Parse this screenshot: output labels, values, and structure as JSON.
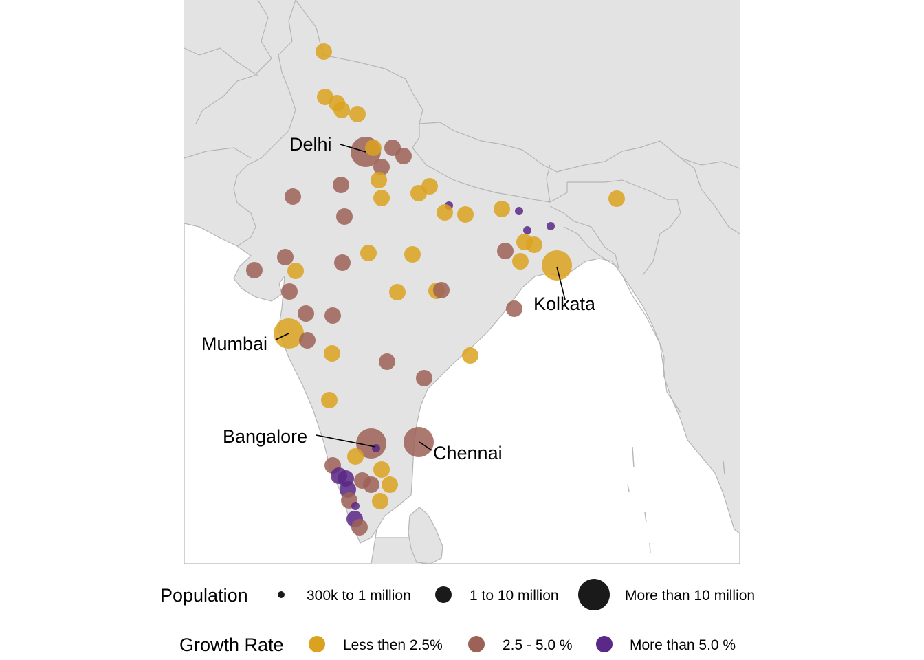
{
  "legend": {
    "population": {
      "title": "Population",
      "items": [
        {
          "label": "300k to 1 million",
          "size_class": "small"
        },
        {
          "label": "1 to 10 million",
          "size_class": "medium"
        },
        {
          "label": "More than 10 million",
          "size_class": "large"
        }
      ]
    },
    "growth": {
      "title": "Growth Rate",
      "items": [
        {
          "label": "Less then 2.5%",
          "color": "#dba21f"
        },
        {
          "label": "2.5 - 5.0 %",
          "color": "#9c6157"
        },
        {
          "label": "More than 5.0 %",
          "color": "#5a2887"
        }
      ]
    }
  },
  "labels": {
    "delhi": "Delhi",
    "kolkata": "Kolkata",
    "mumbai": "Mumbai",
    "bangalore": "Bangalore",
    "chennai": "Chennai"
  },
  "colors": {
    "land": "#e3e3e3",
    "border": "#b5b5b5",
    "legend_key": "#1a1a1a"
  }
}
